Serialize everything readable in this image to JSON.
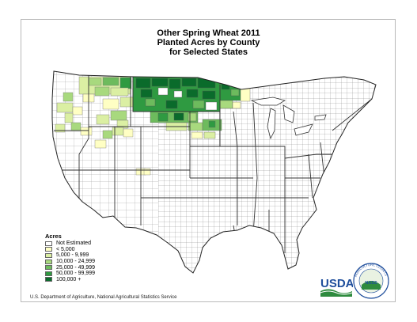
{
  "title": {
    "line1": "Other Spring Wheat 2011",
    "line2": "Planted Acres by County",
    "line3": "for Selected States"
  },
  "legend": {
    "title": "Acres",
    "items": [
      {
        "label": "Not Estimated",
        "color": "#ffffff"
      },
      {
        "label": "< 5,000",
        "color": "#ffffc4"
      },
      {
        "label": "5,000 - 9,999",
        "color": "#dbefa3"
      },
      {
        "label": "10,000 - 24,999",
        "color": "#a8d97e"
      },
      {
        "label": "25,000 - 49,999",
        "color": "#6dbb5d"
      },
      {
        "label": "50,000 - 99,999",
        "color": "#2f9a41"
      },
      {
        "label": "100,000 +",
        "color": "#0a6b2b"
      }
    ]
  },
  "footer": "U.S. Department of Agriculture, National Agricultural Statistics Service",
  "logo": {
    "usda": "USDA"
  },
  "seal": {
    "text": "AGRICULTURE COUNTS",
    "abbr": "NASS"
  },
  "colors": {
    "border": "#b9b9b9",
    "county_line": "#7a7a7a",
    "usda_blue": "#1f4e9c",
    "usda_green": "#2e8b3e"
  }
}
